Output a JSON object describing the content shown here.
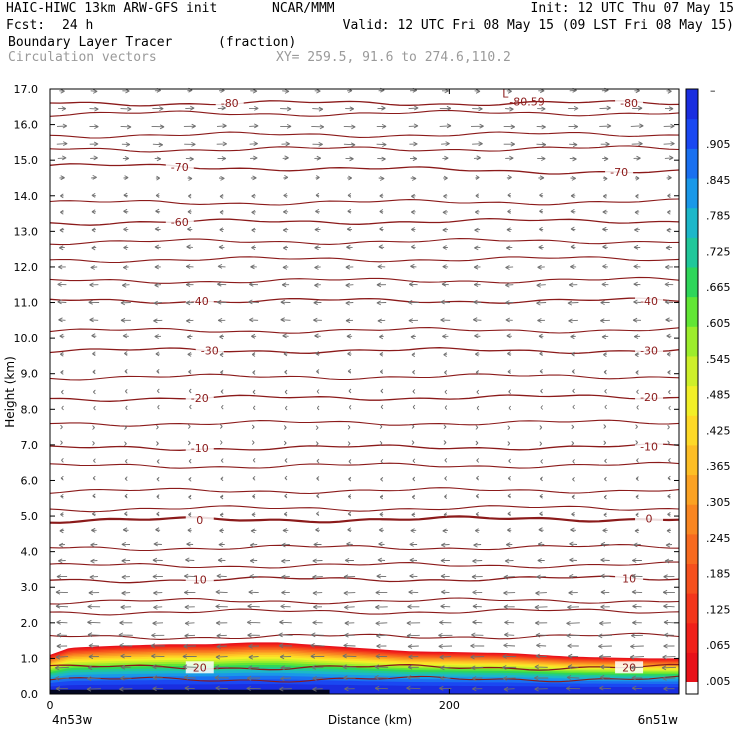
{
  "header": {
    "model": "HAIC-HIWC 13km ARW-GFS init",
    "org": "NCAR/MMM",
    "init": "Init: 12 UTC Thu 07 May 15",
    "fcst_label": "Fcst:",
    "fcst_value": "24 h",
    "valid": "Valid: 12 UTC Fri 08 May 15 (09 LST Fri 08 May 15)",
    "field": "Boundary Layer Tracer",
    "units": "(fraction)",
    "vectors": "Circulation vectors",
    "xy": "XY= 259.5, 91.6 to 274.6,110.2"
  },
  "chart_data": {
    "type": "heatmap",
    "ylabel": "Height (km)",
    "xlabel": "Distance (km)",
    "ylim": [
      0,
      17
    ],
    "xlim": [
      0,
      315
    ],
    "y_ticks": [
      "0.0",
      "1.0",
      "2.0",
      "3.0",
      "4.0",
      "5.0",
      "6.0",
      "7.0",
      "8.0",
      "9.0",
      "10.0",
      "11.0",
      "12.0",
      "13.0",
      "14.0",
      "15.0",
      "16.0",
      "17.0"
    ],
    "x_ticks": [
      {
        "value": 0,
        "label": "0"
      },
      {
        "value": 200,
        "label": "200"
      }
    ],
    "x_end_labels": {
      "left": "4n53w",
      "right": "6n51w"
    },
    "colorbar": {
      "labels": [
        ".905",
        ".845",
        ".785",
        ".725",
        ".665",
        ".605",
        ".545",
        ".485",
        ".425",
        ".365",
        ".305",
        ".245",
        ".185",
        ".125",
        ".065",
        ".005"
      ],
      "top_mark": "–",
      "colors": [
        "#e8111a",
        "#f0201a",
        "#f3361b",
        "#f5501d",
        "#f76a1f",
        "#f98621",
        "#fba223",
        "#fdbe25",
        "#fed927",
        "#f2ef28",
        "#ceef2a",
        "#9ded2c",
        "#62e635",
        "#2fd65a",
        "#20c79a",
        "#1cb7c9",
        "#1a98e8",
        "#1a70f0",
        "#1a48f2",
        "#1a2ee0"
      ],
      "bottom_color": "#ffffff"
    },
    "tracer_profile": {
      "x": [
        0,
        10,
        30,
        60,
        80,
        100,
        115,
        140,
        180,
        230,
        260,
        300,
        315
      ],
      "top_km": [
        1.1,
        1.3,
        1.35,
        1.4,
        1.4,
        1.45,
        1.45,
        1.35,
        1.2,
        1.15,
        1.05,
        1.0,
        1.0
      ]
    },
    "temperature_contours": [
      {
        "value": 20,
        "y_left": 0.75,
        "y_right": 0.75,
        "labels": [
          {
            "x": 75,
            "text": "20"
          },
          {
            "x": 290,
            "text": "20"
          }
        ]
      },
      {
        "value": 10,
        "y_left": 3.2,
        "y_right": 3.25,
        "labels": [
          {
            "x": 75,
            "text": "10"
          },
          {
            "x": 290,
            "text": "10"
          }
        ]
      },
      {
        "value": 0,
        "y_left": 4.88,
        "y_right": 4.93,
        "labels": [
          {
            "x": 75,
            "text": "0"
          },
          {
            "x": 300,
            "text": "0"
          }
        ]
      },
      {
        "value": -10,
        "y_left": 6.9,
        "y_right": 6.95,
        "labels": [
          {
            "x": 75,
            "text": "-10"
          },
          {
            "x": 300,
            "text": "-10"
          }
        ]
      },
      {
        "value": -20,
        "y_left": 8.3,
        "y_right": 8.35,
        "labels": [
          {
            "x": 75,
            "text": "-20"
          },
          {
            "x": 300,
            "text": "-20"
          }
        ]
      },
      {
        "value": -30,
        "y_left": 9.65,
        "y_right": 9.65,
        "labels": [
          {
            "x": 80,
            "text": "-30"
          },
          {
            "x": 300,
            "text": "-30"
          }
        ]
      },
      {
        "value": -40,
        "y_left": 11.05,
        "y_right": 11.05,
        "labels": [
          {
            "x": 75,
            "text": "-40"
          },
          {
            "x": 300,
            "text": "-40"
          }
        ]
      },
      {
        "value": -60,
        "y_left": 13.25,
        "y_right": 13.3,
        "labels": [
          {
            "x": 65,
            "text": "-60"
          }
        ]
      },
      {
        "value": -70,
        "y_left": 14.85,
        "y_right": 14.65,
        "labels": [
          {
            "x": 65,
            "text": "-70"
          },
          {
            "x": 285,
            "text": "-70"
          }
        ]
      },
      {
        "value": -80,
        "y_left": 16.6,
        "y_right": 16.6,
        "labels": [
          {
            "x": 90,
            "text": "-80"
          },
          {
            "x": 290,
            "text": "-80"
          }
        ]
      }
    ],
    "extra_isotherms_km": [
      0.4,
      1.6,
      2.3,
      2.6,
      3.6,
      4.1,
      5.2,
      5.7,
      6.4,
      7.6,
      8.9,
      10.2,
      11.6,
      12.2,
      12.7,
      13.8,
      15.3,
      15.7,
      16.3
    ],
    "min_marker": {
      "x": 225,
      "y": 16.65,
      "text": "-80.59",
      "symbol": "L"
    },
    "vector_levels_km": [
      0.15,
      0.45,
      0.75,
      1.05,
      1.35,
      1.65,
      2.0,
      2.45,
      2.85,
      3.3,
      3.75,
      4.2,
      4.6,
      5.05,
      5.55,
      6.05,
      6.55,
      7.05,
      7.5,
      8.05,
      8.5,
      9.05,
      9.55,
      10.05,
      10.5,
      11.0,
      11.5,
      12.0,
      12.55,
      13.05,
      13.55,
      14.0,
      14.5,
      15.05,
      15.45,
      15.95,
      16.45,
      16.95
    ],
    "vector_u_by_level": [
      -1,
      -1,
      -1,
      -1,
      -1,
      -1,
      -0.95,
      -0.9,
      -0.85,
      -0.8,
      -0.7,
      -0.6,
      -0.4,
      -0.25,
      -0.2,
      -0.15,
      -0.1,
      0.1,
      0.1,
      -0.05,
      -0.1,
      -0.2,
      -0.3,
      -0.45,
      -0.7,
      -0.75,
      -0.65,
      -0.55,
      -0.45,
      -0.4,
      -0.35,
      -0.3,
      0.4,
      0.6,
      0.8,
      0.9,
      0.8,
      0.5
    ],
    "vector_columns_x": [
      6,
      22,
      38,
      54,
      70,
      86,
      102,
      118,
      134,
      150,
      166,
      182,
      198,
      214,
      230,
      246,
      262,
      278,
      294,
      310
    ]
  }
}
